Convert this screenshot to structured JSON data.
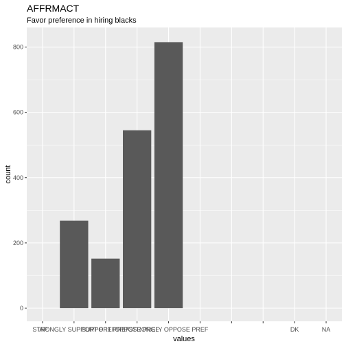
{
  "chart_data": {
    "type": "bar",
    "title": "AFFRMACT",
    "subtitle": "Favor preference in hiring blacks",
    "xlabel": "values",
    "ylabel": "count",
    "categories": [
      "IAP",
      "STRONGLY SUPPORT PREF",
      "SUPPORT PREF",
      "OPPOSE PREF",
      "STRONGLY OPPOSE PREF",
      "",
      "",
      "",
      "DK",
      "NA"
    ],
    "values": [
      0,
      268,
      152,
      545,
      815,
      0,
      0,
      0,
      0,
      0
    ],
    "ylim": [
      -40,
      860
    ],
    "yticks": [
      0,
      200,
      400,
      600,
      800
    ],
    "grid": true,
    "bar_color": "#595959",
    "panel_color": "#ebebeb",
    "grid_color": "#ffffff"
  }
}
